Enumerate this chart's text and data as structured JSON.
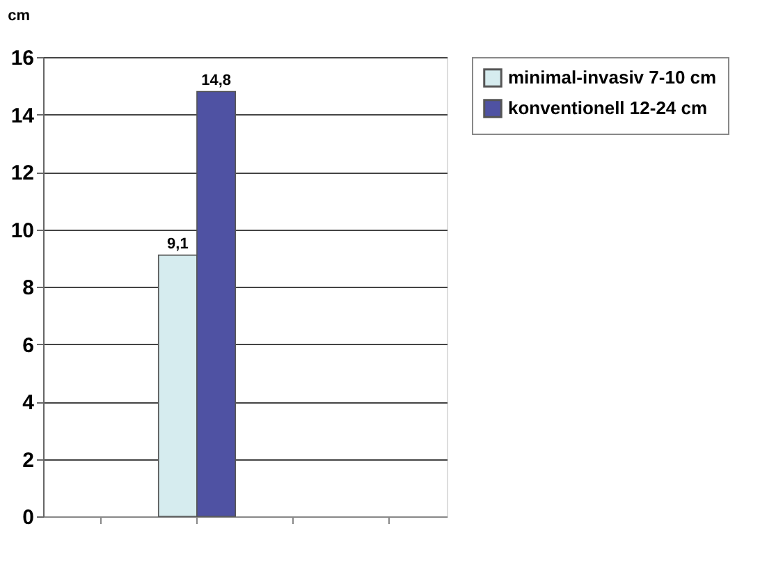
{
  "chart_data": {
    "type": "bar",
    "ylabel": "cm",
    "categories": [
      null,
      null,
      null,
      null
    ],
    "series": [
      {
        "name": "minimal-invasiv 7-10 cm",
        "color": "#d6ecef",
        "values": [
          null,
          9.1,
          null,
          null
        ],
        "value_labels": [
          null,
          "9,1",
          null,
          null
        ]
      },
      {
        "name": "konventionell 12-24 cm",
        "color": "#4f52a3",
        "values": [
          null,
          14.8,
          null,
          null
        ],
        "value_labels": [
          null,
          "14,8",
          null,
          null
        ]
      }
    ],
    "ylim": [
      0,
      16
    ],
    "yticks": [
      0,
      2,
      4,
      6,
      8,
      10,
      12,
      14,
      16
    ],
    "grid": "y",
    "legend": "right",
    "tick_labels": "y"
  }
}
